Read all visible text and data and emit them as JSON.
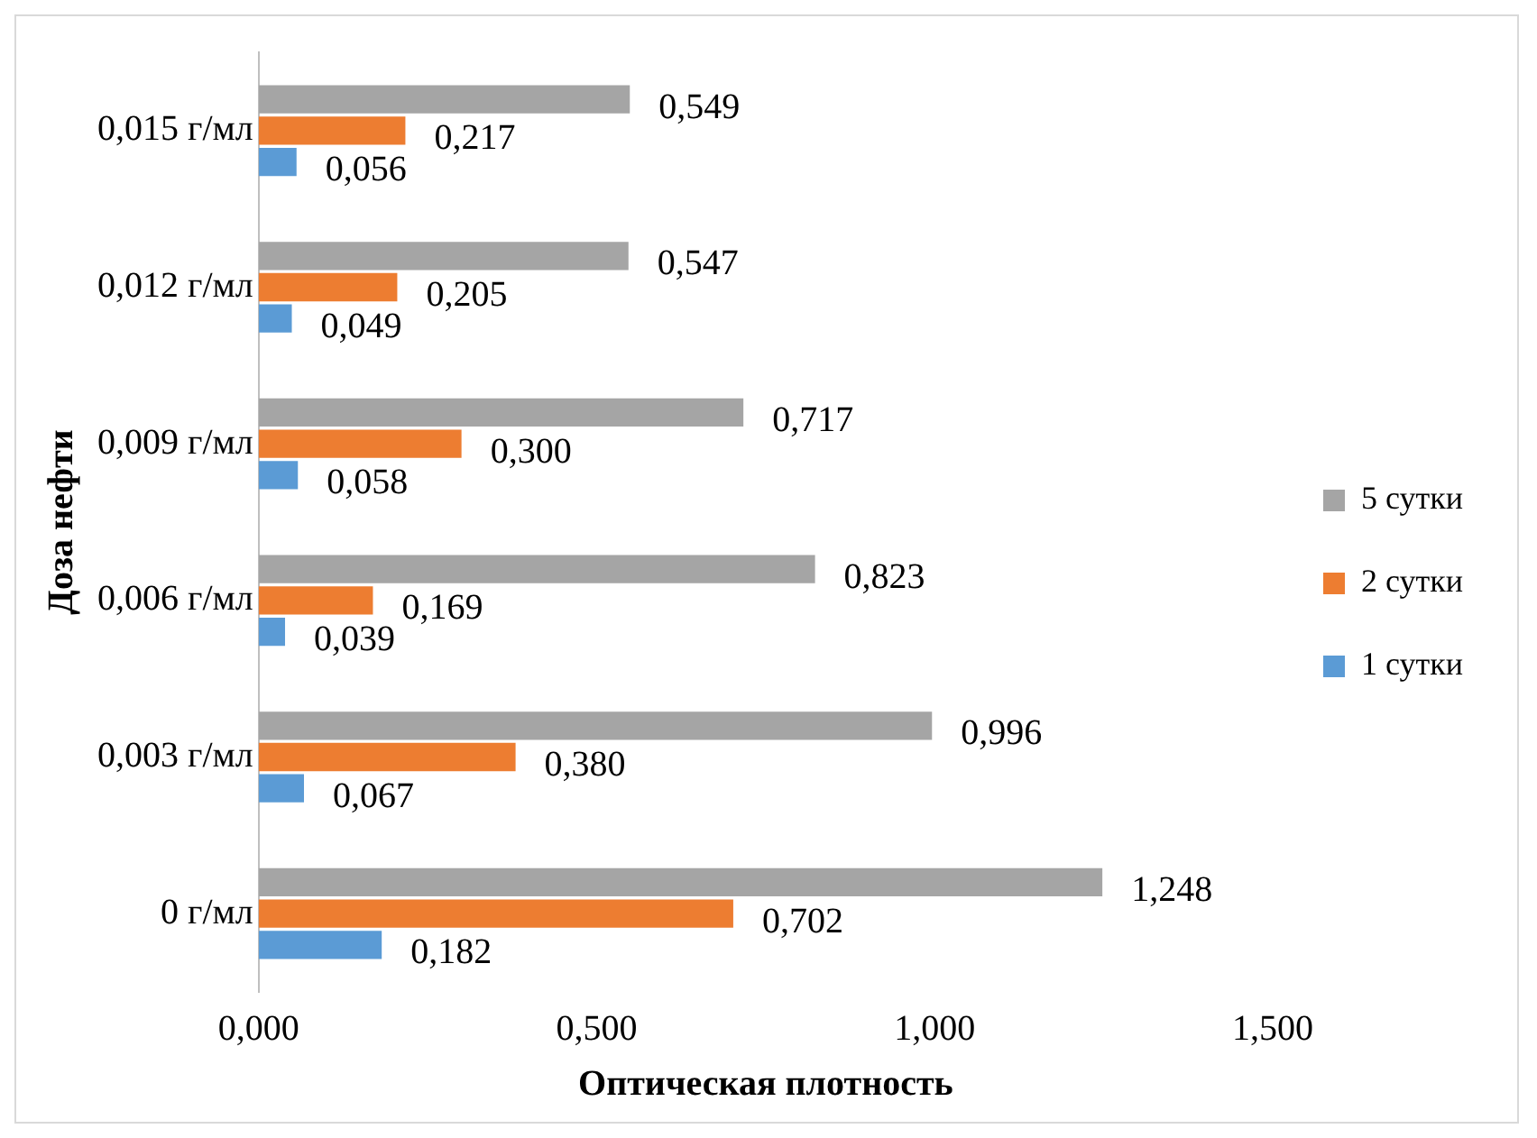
{
  "chart_data": {
    "type": "bar",
    "orientation": "horizontal",
    "xlabel": "Оптическая плотность",
    "ylabel": "Доза нефти",
    "categories": [
      "0,015 г/мл",
      "0,012 г/мл",
      "0,009 г/мл",
      "0,006 г/мл",
      "0,003 г/мл",
      "0 г/мл"
    ],
    "series": [
      {
        "name": "5 сутки",
        "color": "#a5a5a5",
        "values": [
          0.549,
          0.547,
          0.717,
          0.823,
          0.996,
          1.248
        ],
        "value_labels": [
          "0,549",
          "0,547",
          "0,717",
          "0,823",
          "0,996",
          "1,248"
        ]
      },
      {
        "name": "2 сутки",
        "color": "#ed7d31",
        "values": [
          0.217,
          0.205,
          0.3,
          0.169,
          0.38,
          0.702
        ],
        "value_labels": [
          "0,217",
          "0,205",
          "0,300",
          "0,169",
          "0,380",
          "0,702"
        ]
      },
      {
        "name": "1 сутки",
        "color": "#5b9bd5",
        "values": [
          0.056,
          0.049,
          0.058,
          0.039,
          0.067,
          0.182
        ],
        "value_labels": [
          "0,056",
          "0,049",
          "0,058",
          "0,039",
          "0,067",
          "0,182"
        ]
      }
    ],
    "xlim": [
      0,
      1.5
    ],
    "xticks": [
      {
        "value": 0,
        "label": "0,000"
      },
      {
        "value": 0.5,
        "label": "0,500"
      },
      {
        "value": 1,
        "label": "1,000"
      },
      {
        "value": 1.5,
        "label": "1,500"
      }
    ],
    "grid": false,
    "legend": "right"
  }
}
